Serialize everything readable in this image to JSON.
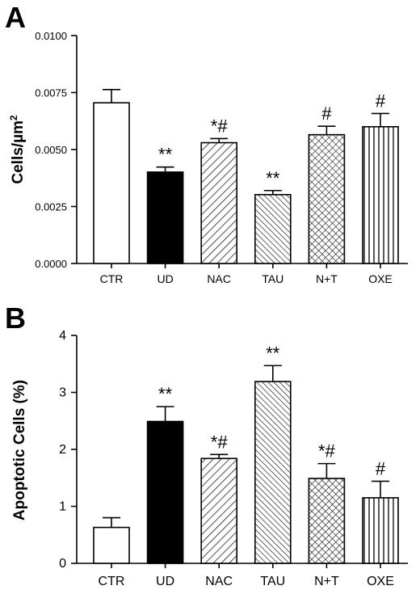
{
  "chart_data": [
    {
      "panel": "A",
      "type": "bar",
      "ylabel": "Cells/µm²",
      "ylabel_base": "Cells/µm",
      "ylabel_sup": "2",
      "ylim": [
        0,
        0.01
      ],
      "yticks": [
        "0.0000",
        "0.0025",
        "0.0050",
        "0.0075",
        "0.0100"
      ],
      "ytick_values": [
        0,
        0.0025,
        0.005,
        0.0075,
        0.01
      ],
      "categories": [
        "CTR",
        "UD",
        "NAC",
        "TAU",
        "N+T",
        "OXE"
      ],
      "values": [
        0.00705,
        0.00401,
        0.0053,
        0.00302,
        0.00565,
        0.006
      ],
      "errors": [
        0.00058,
        0.00022,
        0.00018,
        0.00018,
        0.00037,
        0.00058
      ],
      "significance": [
        "",
        "**",
        "*#",
        "**",
        "#",
        "#"
      ],
      "fills": [
        "white",
        "black",
        "diag-right",
        "diag-left",
        "crosshatch",
        "vertical"
      ]
    },
    {
      "panel": "B",
      "type": "bar",
      "ylabel": "Apoptotic Cells (%)",
      "ylim": [
        0,
        4
      ],
      "yticks": [
        "0",
        "1",
        "2",
        "3",
        "4"
      ],
      "ytick_values": [
        0,
        1,
        2,
        3,
        4
      ],
      "categories": [
        "CTR",
        "UD",
        "NAC",
        "TAU",
        "N+T",
        "OXE"
      ],
      "values": [
        0.63,
        2.49,
        1.84,
        3.19,
        1.49,
        1.15
      ],
      "errors": [
        0.17,
        0.26,
        0.07,
        0.28,
        0.26,
        0.29
      ],
      "significance": [
        "",
        "**",
        "*#",
        "**",
        "*#",
        "#"
      ],
      "fills": [
        "white",
        "black",
        "diag-right",
        "diag-left",
        "crosshatch",
        "vertical"
      ]
    }
  ]
}
